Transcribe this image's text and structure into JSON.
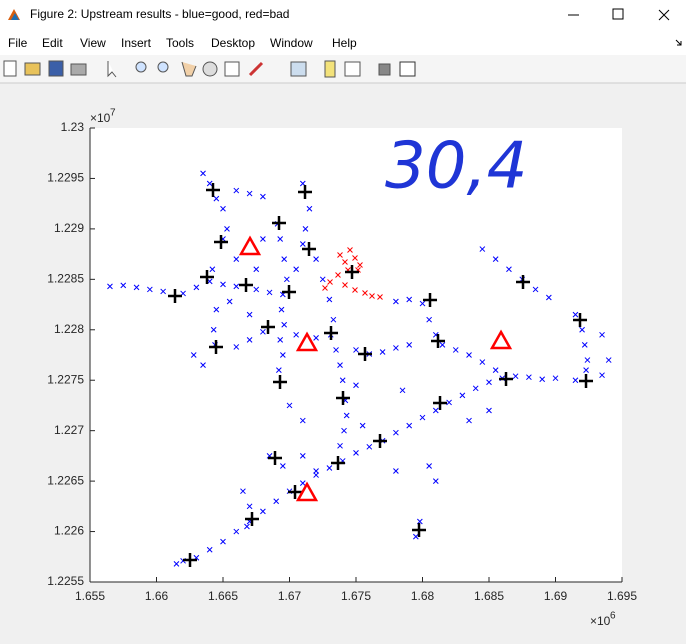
{
  "window": {
    "title": "Figure 2: Upstream results - blue=good, red=bad",
    "menu": [
      "File",
      "Edit",
      "View",
      "Insert",
      "Tools",
      "Desktop",
      "Window",
      "Help"
    ]
  },
  "chart_data": {
    "type": "scatter",
    "annotation": "30,4",
    "x_exponent": {
      "base": "×10",
      "power": "6"
    },
    "y_exponent": {
      "base": "×10",
      "power": "7"
    },
    "xlim": [
      1655000,
      1695000
    ],
    "xticks": [
      {
        "value": 1655000,
        "label": "1.655"
      },
      {
        "value": 1660000,
        "label": "1.66"
      },
      {
        "value": 1665000,
        "label": "1.665"
      },
      {
        "value": 1670000,
        "label": "1.67"
      },
      {
        "value": 1675000,
        "label": "1.675"
      },
      {
        "value": 1680000,
        "label": "1.68"
      },
      {
        "value": 1685000,
        "label": "1.685"
      },
      {
        "value": 1690000,
        "label": "1.69"
      },
      {
        "value": 1695000,
        "label": "1.695"
      }
    ],
    "ylim": [
      12255000,
      12300000
    ],
    "yticks": [
      {
        "value": 12255000,
        "label": "1.2255"
      },
      {
        "value": 12260000,
        "label": "1.226"
      },
      {
        "value": 12265000,
        "label": "1.2265"
      },
      {
        "value": 12270000,
        "label": "1.227"
      },
      {
        "value": 12275000,
        "label": "1.2275"
      },
      {
        "value": 12280000,
        "label": "1.228"
      },
      {
        "value": 12285000,
        "label": "1.2285"
      },
      {
        "value": 12290000,
        "label": "1.229"
      },
      {
        "value": 12295000,
        "label": "1.2295"
      },
      {
        "value": 12300000,
        "label": "1.23"
      }
    ],
    "series": [
      {
        "color": "#0000ff",
        "marker": "x",
        "x": [
          1661500,
          1662000,
          1663000,
          1664000,
          1665000,
          1666000,
          1667000,
          1668000,
          1669000,
          1670000,
          1671000,
          1672000,
          1673000,
          1674000,
          1675000,
          1676000,
          1677000,
          1678000,
          1679000,
          1680000,
          1681000,
          1682000,
          1683000,
          1684000,
          1685000,
          1686000,
          1687000,
          1688000,
          1689000,
          1690000,
          1656500,
          1657500,
          1658500,
          1659500,
          1660500,
          1662000,
          1663000,
          1664000,
          1665000,
          1666000,
          1667500,
          1668500,
          1669500,
          1669200,
          1669500,
          1669300,
          1669600,
          1669400,
          1669800,
          1669600,
          1669300,
          1669100,
          1663500,
          1664000,
          1664500,
          1665000,
          1665300,
          1665000,
          1666000,
          1667000,
          1668000,
          1671000,
          1671500,
          1671200,
          1671000,
          1672000,
          1664200,
          1664500,
          1664300,
          1664400,
          1663500,
          1662800,
          1673000,
          1673300,
          1673100,
          1673500,
          1673800,
          1674000,
          1674200,
          1674300,
          1674100,
          1673800,
          1666000,
          1667000,
          1668000,
          1670500,
          1672000,
          1675000,
          1676000,
          1677000,
          1678000,
          1679000,
          1678000,
          1679000,
          1680000,
          1680500,
          1681000,
          1681500,
          1682500,
          1683500,
          1684500,
          1685500,
          1684500,
          1685500,
          1686500,
          1687500,
          1688500,
          1689500,
          1691500,
          1692000,
          1692200,
          1692400,
          1692300,
          1691500,
          1693500,
          1694000,
          1693500,
          1668500,
          1669500,
          1671000,
          1672000,
          1666500,
          1667000,
          1666800,
          1679500,
          1679800,
          1680500,
          1681000,
          1678000,
          1675500,
          1671000,
          1670000,
          1675000,
          1685000,
          1683500,
          1678500,
          1666000,
          1667500,
          1668000,
          1670500,
          1672500,
          1665500,
          1667000
        ],
        "y": [
          12256800,
          12257100,
          12257400,
          12258200,
          12259000,
          12260000,
          12261000,
          12262000,
          12263000,
          12264000,
          12264800,
          12265600,
          12266300,
          12267000,
          12267800,
          12268400,
          12269000,
          12269800,
          12270500,
          12271300,
          12272000,
          12272800,
          12273500,
          12274200,
          12274800,
          12275200,
          12275400,
          12275300,
          12275100,
          12275200,
          12284300,
          12284400,
          12284200,
          12284000,
          12283800,
          12283600,
          12284200,
          12284800,
          12284500,
          12284300,
          12284000,
          12283700,
          12283500,
          12276000,
          12277500,
          12279000,
          12280500,
          12282000,
          12285000,
          12287000,
          12289000,
          12290500,
          12295500,
          12294500,
          12293000,
          12292000,
          12290000,
          12289000,
          12293800,
          12293500,
          12293200,
          12294500,
          12292000,
          12290000,
          12288500,
          12287000,
          12286000,
          12282000,
          12280000,
          12278500,
          12276500,
          12277500,
          12283000,
          12281000,
          12279500,
          12278000,
          12276500,
          12275000,
          12273000,
          12271500,
          12270000,
          12268500,
          12278300,
          12279000,
          12279800,
          12279500,
          12279200,
          12278000,
          12277600,
          12277800,
          12278200,
          12278500,
          12282800,
          12283000,
          12282600,
          12281000,
          12279500,
          12278500,
          12278000,
          12277500,
          12276800,
          12276000,
          12288000,
          12287000,
          12286000,
          12285000,
          12284000,
          12283200,
          12281500,
          12280000,
          12278500,
          12277000,
          12276000,
          12275000,
          12275500,
          12277000,
          12279500,
          12267500,
          12266500,
          12267500,
          12266000,
          12264000,
          12262500,
          12260500,
          12259500,
          12261000,
          12266500,
          12265000,
          12266000,
          12270500,
          12271000,
          12272500,
          12274500,
          12272000,
          12271000,
          12274000,
          12287000,
          12286000,
          12289000,
          12286000,
          12285000,
          12282800,
          12281500
        ]
      },
      {
        "color": "#ff0000",
        "marker": "x",
        "x": [
          1673797,
          1674173,
          1674549,
          1674925,
          1675301,
          1674399,
          1673647,
          1673046,
          1672670,
          1674173,
          1674925,
          1675677,
          1676204,
          1676805,
          1675151
        ],
        "y": [
          12287412,
          12286718,
          12287908,
          12287115,
          12286421,
          12285925,
          12285430,
          12284736,
          12284141,
          12284439,
          12283943,
          12283646,
          12283348,
          12283249,
          12285925
        ]
      },
      {
        "color": "#000000",
        "marker": "+",
        "x": [
          1664248,
          1671166,
          1669211,
          1664850,
          1671467,
          1663797,
          1666730,
          1669963,
          1661391,
          1674700,
          1687557,
          1680565,
          1691843,
          1668384,
          1673121,
          1681166,
          1664474,
          1675677,
          1686279,
          1692294,
          1669286,
          1674023,
          1681317,
          1676805,
          1668910,
          1673647,
          1670414,
          1667181,
          1679738,
          1662519
        ],
        "y": [
          12293855,
          12293657,
          12290584,
          12288701,
          12288007,
          12285232,
          12284439,
          12283745,
          12283348,
          12285727,
          12284736,
          12282952,
          12280969,
          12280276,
          12279681,
          12278888,
          12278293,
          12277599,
          12275121,
          12274923,
          12274824,
          12273238,
          12272742,
          12268976,
          12267291,
          12266795,
          12263921,
          12261245,
          12260154,
          12257181
        ]
      },
      {
        "color": "#ff0000",
        "marker": "triangle",
        "x": [
          1667030,
          1671316,
          1685903,
          1671316
        ],
        "y": [
          12288205,
          12278690,
          12278888,
          12263822
        ]
      }
    ]
  }
}
